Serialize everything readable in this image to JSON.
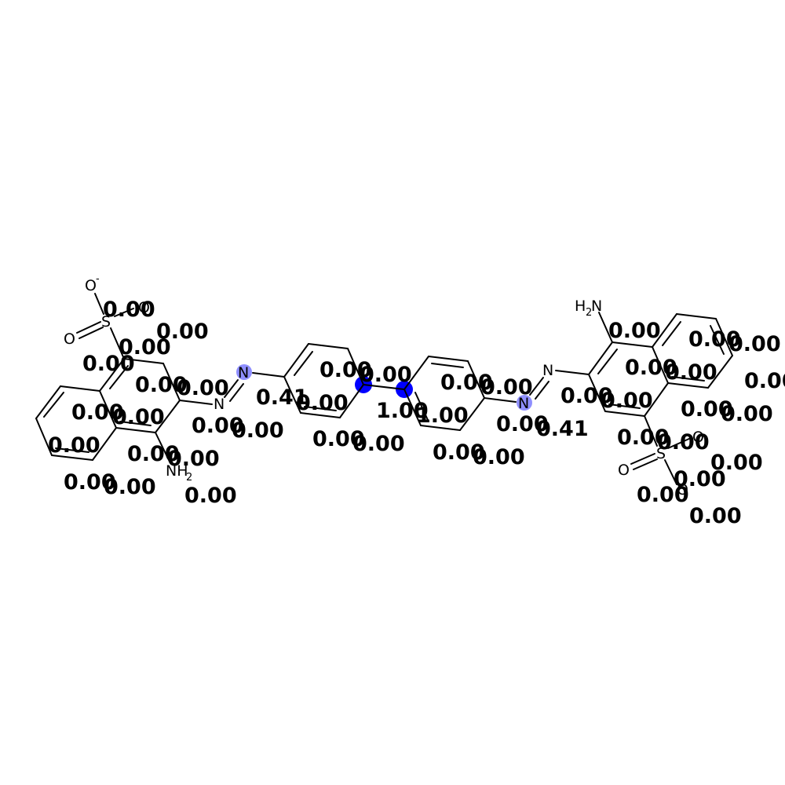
{
  "colors": {
    "highlight_strong": "#0000ff",
    "highlight_medium": "#8f8fff",
    "bond": "#000000",
    "background": "#ffffff"
  },
  "atoms": {
    "o_minus_left": "O",
    "o_minus_left_charge": "-",
    "s_left": "S",
    "o_left_a": "O",
    "o_left_b": "O",
    "n_left_top": "N",
    "n_left_bottom": "N",
    "nh2_left": "NH",
    "nh2_left_sub": "2",
    "n_right_top": "N",
    "n_right_bottom": "N",
    "h2n_right_h": "H",
    "h2n_right_sub": "2",
    "h2n_right_n": "N",
    "s_right": "S",
    "o_right_a": "O",
    "o_right_b": "O",
    "o_right_c": "O"
  },
  "scores": {
    "s01": "0.00",
    "s02": "0.00",
    "s03": "0.00",
    "s04": "0.00",
    "s05": "0.00",
    "s06": "0.00",
    "s07": "0.00",
    "s08": "0.00",
    "s09": "0.00",
    "s10": "0.00",
    "s11": "0.00",
    "s12": "0.00",
    "s13": "0.00",
    "s14": "0.00",
    "s15": "0.00",
    "s16": "0.00",
    "s17": "0.41",
    "s18": "0.00",
    "s19": "0.00",
    "s20": "0.00",
    "s21": "0.00",
    "s22": "0.00",
    "s23": "1.00",
    "s24": "1.00",
    "s25": "0.00",
    "s26": "0.00",
    "s27": "0.00",
    "s28": "0.00",
    "s29": "0.00",
    "s30": "0.00",
    "s31": "0.00",
    "s32": "0.41",
    "s33": "0.00",
    "s34": "0.00",
    "s35": "0.00",
    "s36": "0.00",
    "s37": "0.00",
    "s38": "0.00",
    "s39": "0.00",
    "s40": "0.00",
    "s41": "0.00",
    "s42": "0.00",
    "s43": "0.00",
    "s44": "0.00",
    "s45": "0.00",
    "s46": "0.00",
    "s47": "0.00",
    "s48": "0.00",
    "s49": "0.00",
    "s50": "0.00",
    "s51": "0.00",
    "s52": "0.00",
    "s53": "0.00"
  }
}
